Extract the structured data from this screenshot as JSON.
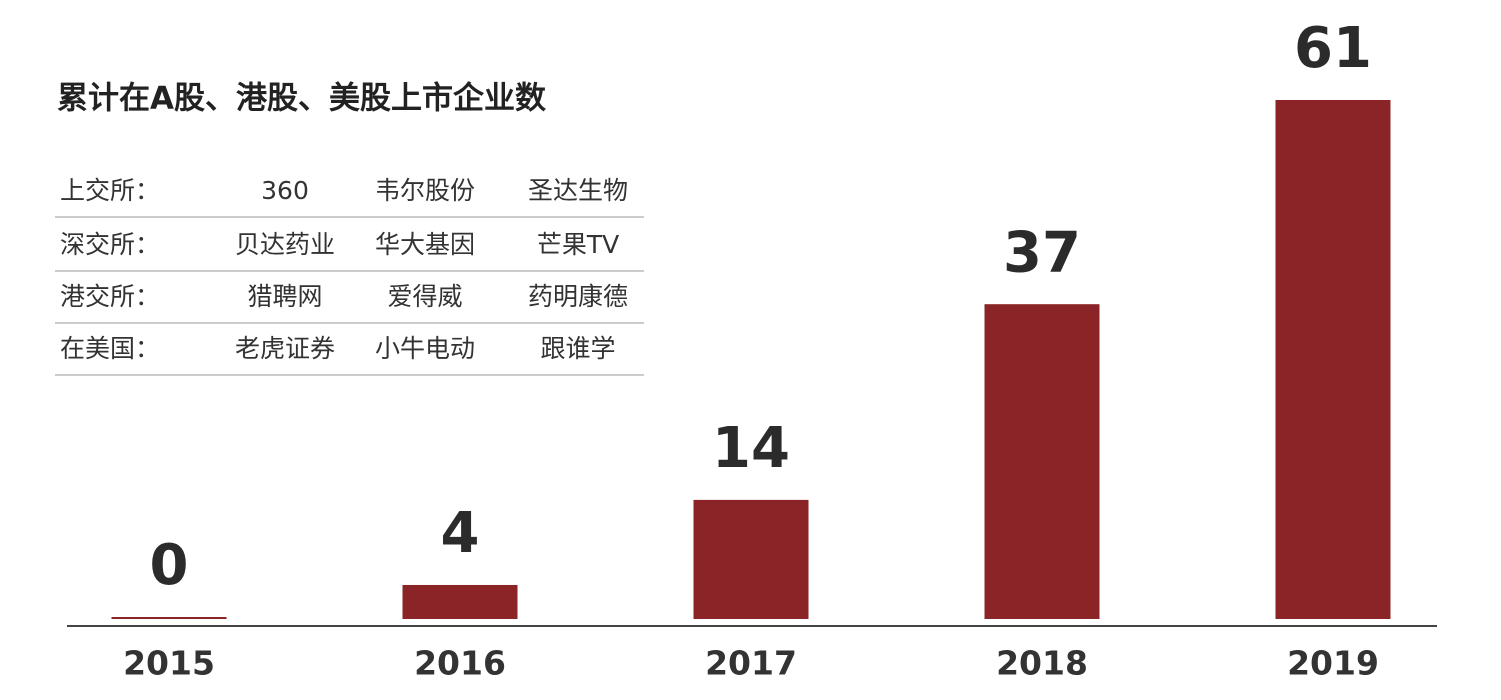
{
  "chart_data": {
    "type": "bar",
    "title": "累计在A股、港股、美股上市企业数",
    "categories": [
      "2015",
      "2016",
      "2017",
      "2018",
      "2019"
    ],
    "values": [
      0,
      4,
      14,
      37,
      61
    ],
    "color": "#8b2426",
    "table": {
      "rows": [
        [
          "上交所：",
          "360",
          "韦尔股份",
          "圣达生物"
        ],
        [
          "深交所：",
          "贝达药业",
          "华大基因",
          "芒果TV"
        ],
        [
          "港交所：",
          "猎聘网",
          "爱得威",
          "药明康德"
        ],
        [
          "在美国：",
          "老虎证券",
          "小牛电动",
          "跟谁学"
        ]
      ]
    }
  }
}
